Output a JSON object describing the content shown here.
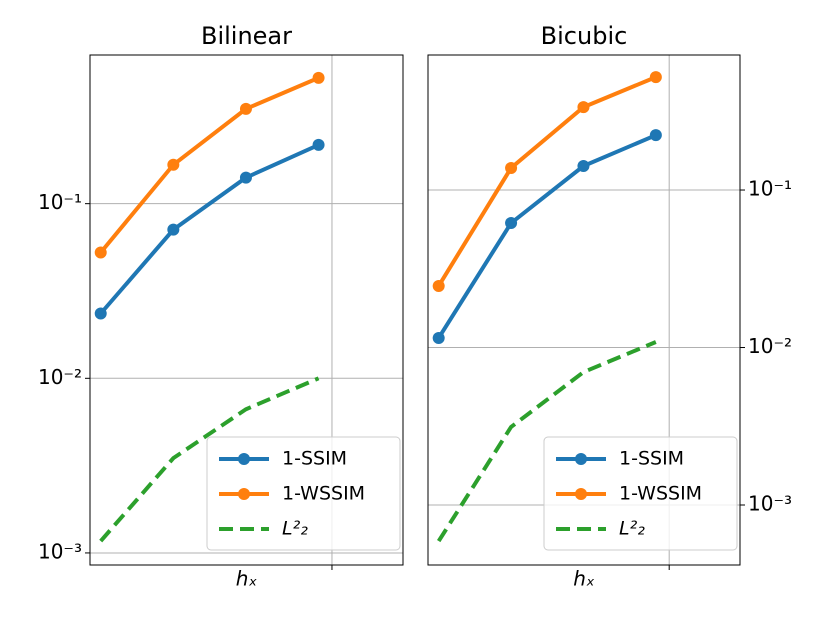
{
  "chart_data": [
    {
      "type": "line",
      "title": "Bilinear",
      "x_label": "hₓ",
      "xscale": "log",
      "yscale": "log",
      "grid": true,
      "legend": "lower right",
      "ytick_side": "left",
      "x": [
        0.011,
        0.022,
        0.044,
        0.088
      ],
      "xlim": [
        0.00993,
        0.197
      ],
      "xticks": [
        0.1
      ],
      "ylim": [
        0.000853,
        0.71
      ],
      "yticks": [
        {
          "value": 0.001,
          "label": "10⁻³"
        },
        {
          "value": 0.01,
          "label": "10⁻²"
        },
        {
          "value": 0.1,
          "label": "10⁻¹"
        }
      ],
      "series": [
        {
          "name": "1-SSIM",
          "color": "#1f77b4",
          "style": "solid",
          "marker": true,
          "values": [
            0.0235,
            0.071,
            0.141,
            0.217
          ]
        },
        {
          "name": "1-WSSIM",
          "color": "#ff7f0e",
          "style": "solid",
          "marker": true,
          "values": [
            0.0525,
            0.167,
            0.349,
            0.525
          ]
        },
        {
          "name": "L²₂",
          "color": "#2ca02c",
          "style": "dashed",
          "marker": false,
          "values": [
            0.00117,
            0.00349,
            0.00665,
            0.01
          ]
        }
      ]
    },
    {
      "type": "line",
      "title": "Bicubic",
      "x_label": "hₓ",
      "xscale": "log",
      "yscale": "log",
      "grid": true,
      "legend": "lower right",
      "ytick_side": "right",
      "x": [
        0.011,
        0.022,
        0.044,
        0.088
      ],
      "xlim": [
        0.00993,
        0.197
      ],
      "xticks": [
        0.1
      ],
      "ylim": [
        0.000416,
        0.72
      ],
      "yticks": [
        {
          "value": 0.001,
          "label": "10⁻³"
        },
        {
          "value": 0.01,
          "label": "10⁻²"
        },
        {
          "value": 0.1,
          "label": "10⁻¹"
        }
      ],
      "series": [
        {
          "name": "1-SSIM",
          "color": "#1f77b4",
          "style": "solid",
          "marker": true,
          "values": [
            0.0115,
            0.0617,
            0.142,
            0.223
          ]
        },
        {
          "name": "1-WSSIM",
          "color": "#ff7f0e",
          "style": "solid",
          "marker": true,
          "values": [
            0.0246,
            0.138,
            0.336,
            0.521
          ]
        },
        {
          "name": "L²₂",
          "color": "#2ca02c",
          "style": "dashed",
          "marker": false,
          "values": [
            0.00059,
            0.00313,
            0.00698,
            0.01084
          ]
        }
      ]
    }
  ]
}
